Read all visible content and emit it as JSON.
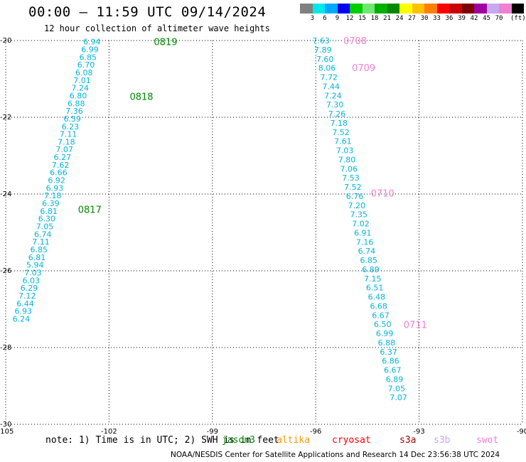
{
  "header": {
    "title": "00:00 – 11:59 UTC 09/14/2024",
    "subtitle": "12 hour collection of altimeter wave heights"
  },
  "color_scale": {
    "unit": "(ft)",
    "labels": [
      "",
      "3",
      "6",
      "9",
      "12",
      "15",
      "18",
      "21",
      "24",
      "27",
      "30",
      "33",
      "36",
      "39",
      "42",
      "45",
      "70"
    ],
    "colors": [
      "#808080",
      "#00e8e8",
      "#00a8ff",
      "#0000ee",
      "#00cc00",
      "#70e870",
      "#00b000",
      "#008800",
      "#ffff00",
      "#ffc000",
      "#ff8000",
      "#ff0000",
      "#c80000",
      "#800000",
      "#a000a0",
      "#c8a8f0",
      "#f080d0",
      "#000000"
    ]
  },
  "map": {
    "lon_ticks": [
      "-105",
      "-102",
      "-99",
      "-96",
      "-93",
      "-90"
    ],
    "lat_ticks": [
      "-20",
      "-22",
      "-24",
      "-26",
      "-28",
      "-30"
    ],
    "value_color": "#00b4dc",
    "pass_label_colors": {
      "jason3": "#008800",
      "swot": "#f080d0"
    },
    "passes": [
      {
        "name": "jason3",
        "times": [
          {
            "label": "0819",
            "lon": -100.7,
            "lat": -20.03
          },
          {
            "label": "0818",
            "lon": -101.4,
            "lat": -21.45
          },
          {
            "label": "0817",
            "lon": -102.9,
            "lat": -24.4
          }
        ],
        "start": {
          "lon": -102.75,
          "lat": -20.03
        },
        "end": {
          "lon": -104.8,
          "lat": -27.25
        },
        "values": [
          "6.94",
          "6.99",
          "6.85",
          "6.70",
          "6.08",
          "7.01",
          "7.24",
          "6.80",
          "6.88",
          "7.36",
          "6.59",
          "6.23",
          "7.11",
          "7.18",
          "7.07",
          "6.27",
          "7.62",
          "6.66",
          "6.92",
          "6.93",
          "7.18",
          "6.39",
          "6.81",
          "6.30",
          "7.05",
          "6.74",
          "7.11",
          "6.85",
          "6.81",
          "5.94",
          "7.03",
          "6.03",
          "6.29",
          "7.12",
          "6.44",
          "6.93",
          "6.24"
        ]
      },
      {
        "name": "swot",
        "times": [
          {
            "label": "0708",
            "lon": -95.2,
            "lat": -20.0
          },
          {
            "label": "0709",
            "lon": -94.95,
            "lat": -20.7
          },
          {
            "label": "0710",
            "lon": -94.4,
            "lat": -23.97
          },
          {
            "label": "0711",
            "lon": -93.45,
            "lat": -27.4
          }
        ],
        "start": {
          "lon": -96.1,
          "lat": -20.0
        },
        "end": {
          "lon": -93.85,
          "lat": -29.3
        },
        "values": [
          "7.63",
          "7.89",
          "7.60",
          "8.06",
          "7.72",
          "7.44",
          "7.24",
          "7.30",
          "7.26",
          "7.18",
          "7.52",
          "7.61",
          "7.03",
          "7.80",
          "7.06",
          "7.53",
          "7.52",
          "6.76",
          "7.20",
          "7.35",
          "7.02",
          "6.91",
          "7.16",
          "6.74",
          "6.85",
          "6.89",
          "7.15",
          "6.51",
          "6.48",
          "6.68",
          "6.67",
          "6.50",
          "6.99",
          "6.88",
          "6.37",
          "6.86",
          "6.67",
          "6.89",
          "7.05",
          "7.07"
        ]
      }
    ]
  },
  "footer": {
    "note": "note: 1) Time is in UTC; 2) SWH is in feet",
    "missions": [
      {
        "name": "jason3",
        "color": "#008800"
      },
      {
        "name": "altika",
        "color": "#ff9900"
      },
      {
        "name": "cryosat",
        "color": "#ff0000"
      },
      {
        "name": "s3a",
        "color": "#a00000"
      },
      {
        "name": "s3b",
        "color": "#c8a8f0"
      },
      {
        "name": "swot",
        "color": "#f080d0"
      }
    ],
    "credit": "NOAA/NESDIS Center for Satellite Applications and Research    14 Dec 23:56:38 UTC 2024"
  }
}
